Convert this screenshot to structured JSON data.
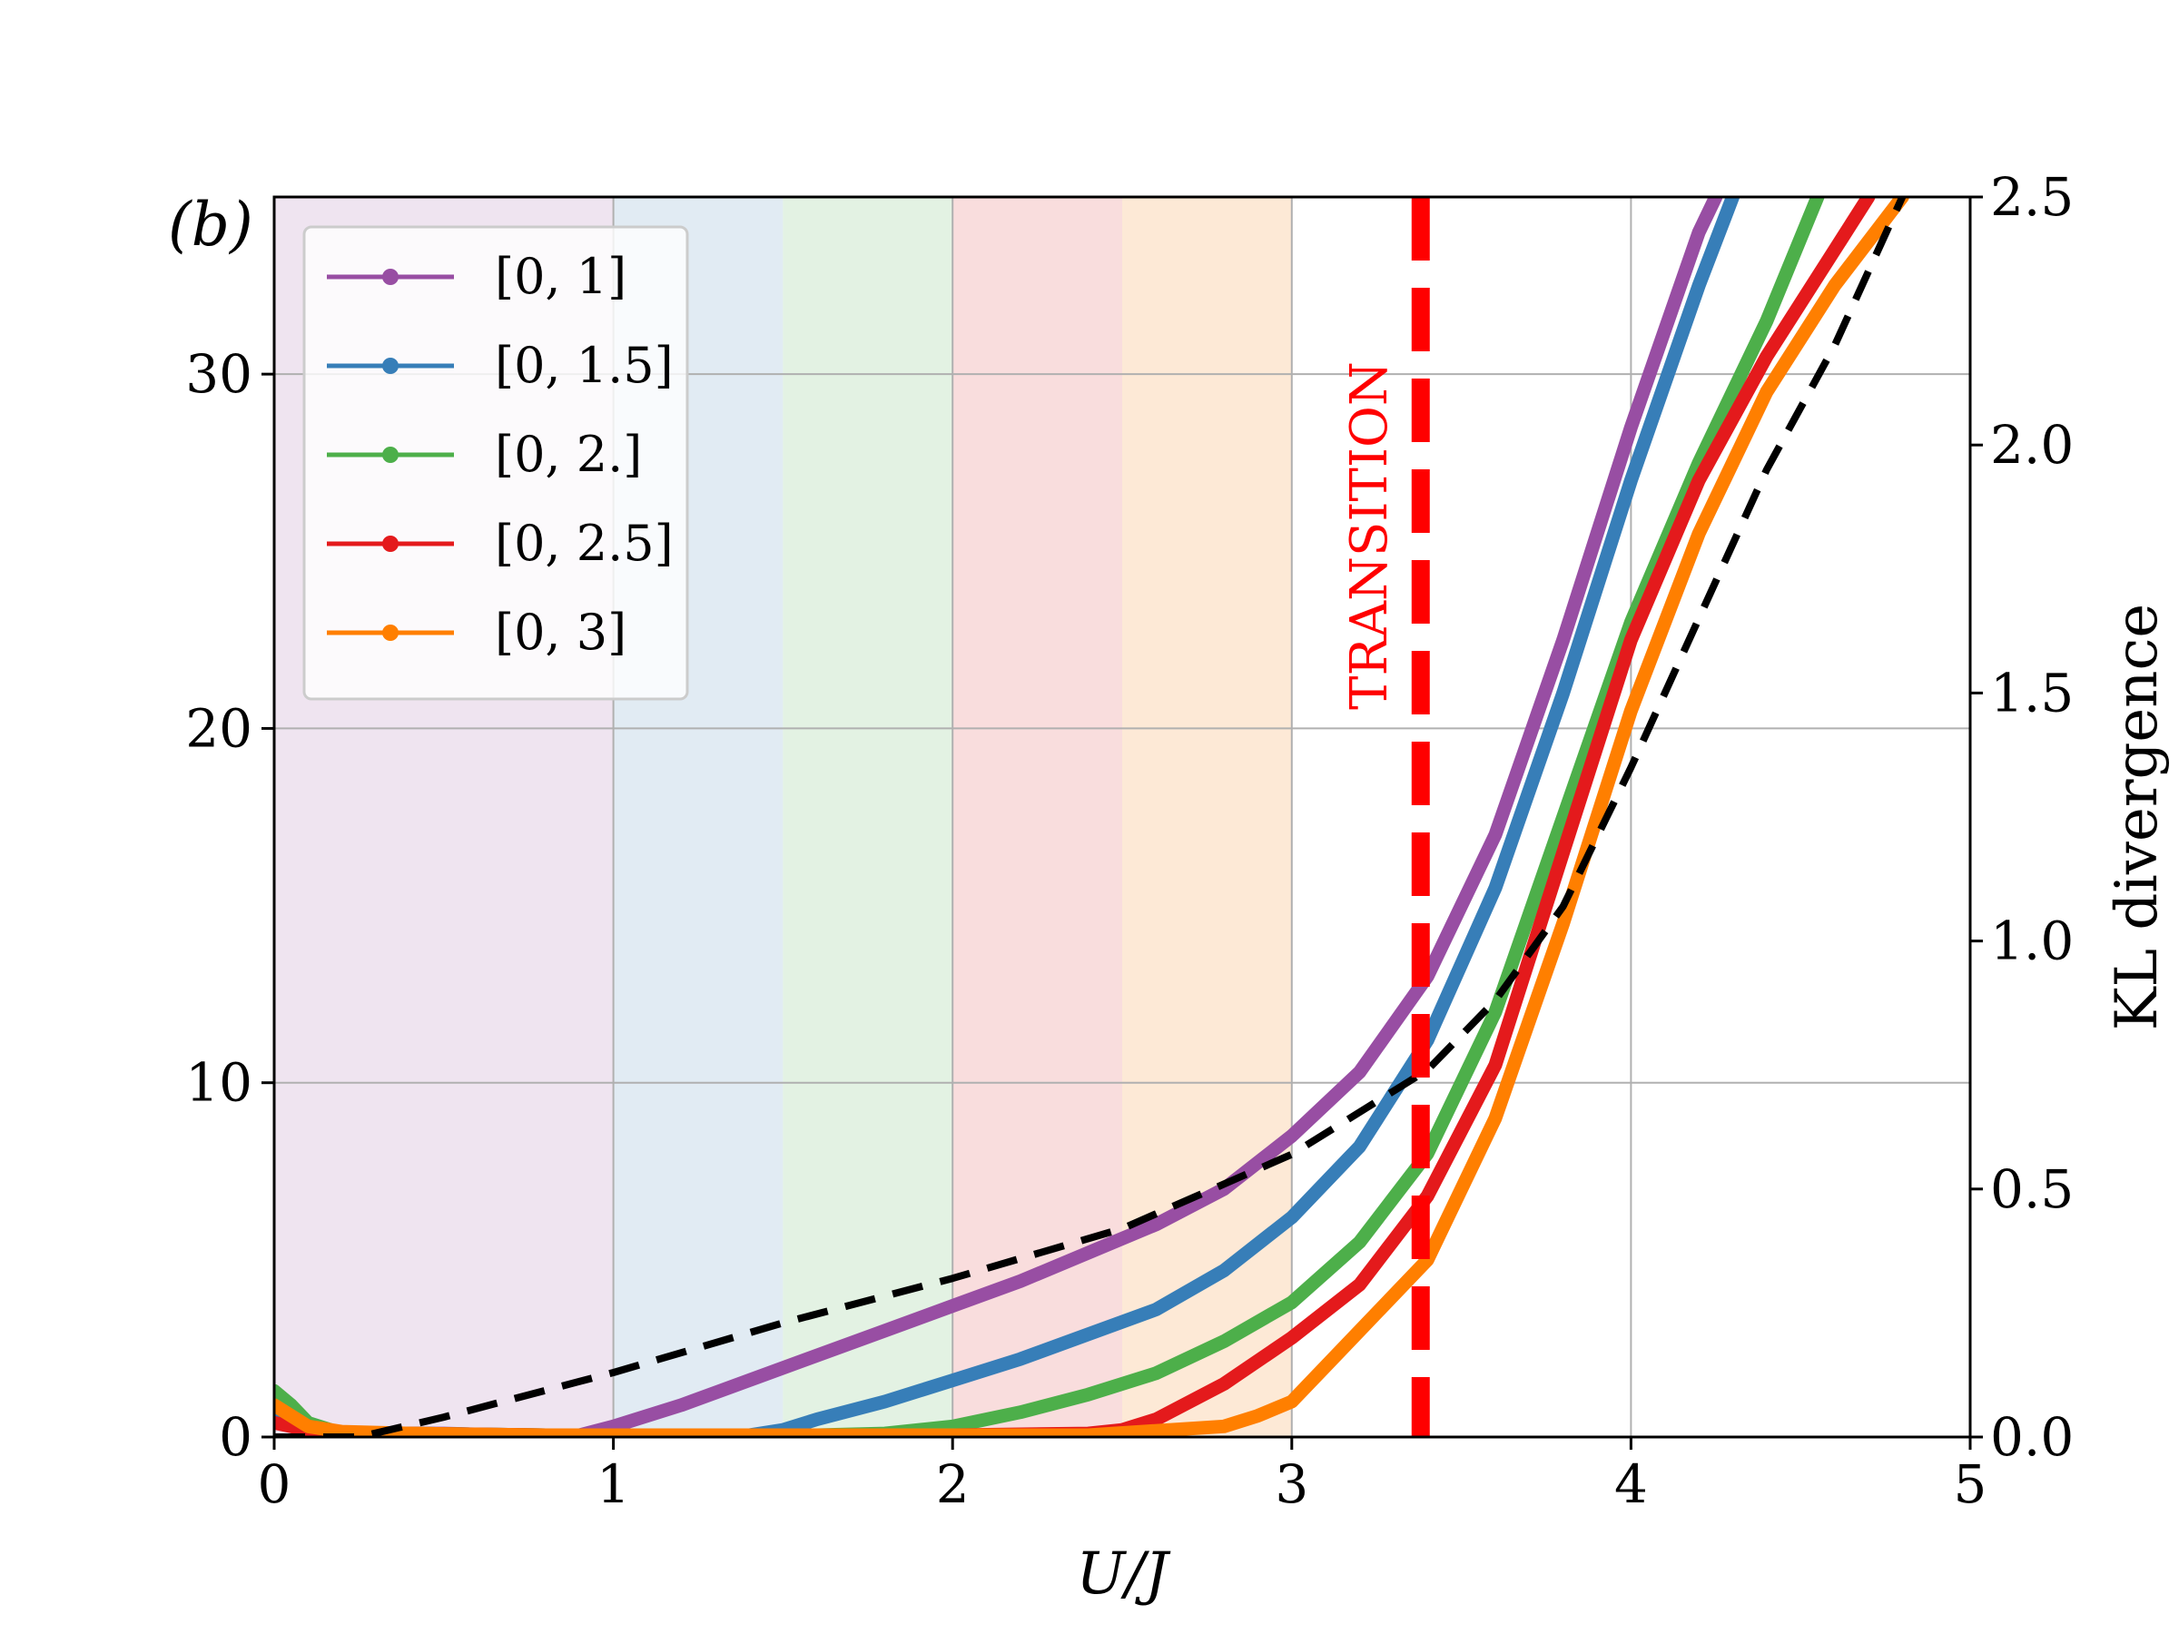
{
  "chart_data": {
    "type": "line",
    "panel_label": "(b)",
    "xlabel": "U/J",
    "ylabel": "",
    "ylabel_right": "KL divergence",
    "xlim": [
      0,
      5
    ],
    "ylim": [
      0,
      35
    ],
    "ylim_right": [
      0,
      2.5
    ],
    "xticks": [
      0,
      1,
      2,
      3,
      4,
      5
    ],
    "yticks": [
      0,
      10,
      20,
      30
    ],
    "yticks_right": [
      "0.0",
      "0.5",
      "1.0",
      "1.5",
      "2.0",
      "2.5"
    ],
    "grid": true,
    "legend_position": "top-left",
    "shaded_bands": [
      {
        "x": [
          0,
          1
        ],
        "color": "#efe4f0"
      },
      {
        "x": [
          1,
          1.5
        ],
        "color": "#e1ebf3"
      },
      {
        "x": [
          1.5,
          2
        ],
        "color": "#e3f2e3"
      },
      {
        "x": [
          2,
          2.5
        ],
        "color": "#f9dddd"
      },
      {
        "x": [
          2.5,
          3
        ],
        "color": "#fde9d6"
      }
    ],
    "transition": {
      "x": 3.38,
      "label": "TRANSITION",
      "color": "#ff0000"
    },
    "series": [
      {
        "name": "[0, 1]",
        "color": "#984ea3",
        "axis": "left",
        "x": [
          0,
          0.05,
          0.1,
          0.2,
          0.3,
          0.5,
          0.7,
          0.9,
          1.0,
          1.2,
          1.4,
          1.6,
          1.8,
          2.0,
          2.2,
          2.4,
          2.6,
          2.8,
          3.0,
          3.2,
          3.4,
          3.6,
          3.8,
          4.0,
          4.2,
          4.25
        ],
        "y": [
          0.7,
          0.4,
          0.2,
          0.1,
          0.1,
          0.1,
          0.05,
          0.05,
          0.3,
          0.9,
          1.6,
          2.3,
          3.0,
          3.7,
          4.4,
          5.2,
          6.0,
          7.0,
          8.5,
          10.3,
          13.0,
          17.0,
          22.5,
          28.5,
          34.0,
          35.0
        ]
      },
      {
        "name": "[0, 1.5]",
        "color": "#377eb8",
        "axis": "left",
        "x": [
          0,
          0.05,
          0.1,
          0.2,
          0.4,
          0.8,
          1.2,
          1.4,
          1.5,
          1.6,
          1.8,
          2.0,
          2.2,
          2.4,
          2.6,
          2.8,
          3.0,
          3.2,
          3.4,
          3.6,
          3.8,
          4.0,
          4.2,
          4.3
        ],
        "y": [
          0.6,
          0.4,
          0.2,
          0.1,
          0.1,
          0.05,
          0.05,
          0.05,
          0.2,
          0.5,
          1.0,
          1.6,
          2.2,
          2.9,
          3.6,
          4.7,
          6.2,
          8.2,
          11.2,
          15.5,
          21.0,
          27.0,
          32.5,
          35.0
        ]
      },
      {
        "name": "[0, 2.]",
        "color": "#4daf4a",
        "axis": "left",
        "x": [
          0,
          0.05,
          0.1,
          0.2,
          0.4,
          0.8,
          1.2,
          1.6,
          1.8,
          2.0,
          2.2,
          2.4,
          2.6,
          2.8,
          3.0,
          3.2,
          3.4,
          3.6,
          3.8,
          4.0,
          4.2,
          4.4,
          4.55
        ],
        "y": [
          1.3,
          0.9,
          0.4,
          0.1,
          0.1,
          0.05,
          0.05,
          0.05,
          0.1,
          0.3,
          0.7,
          1.2,
          1.8,
          2.7,
          3.8,
          5.5,
          8.0,
          12.0,
          17.5,
          23.0,
          27.5,
          31.5,
          35.0
        ]
      },
      {
        "name": "[0, 2.5]",
        "color": "#e41a1c",
        "axis": "left",
        "x": [
          0,
          0.05,
          0.1,
          0.2,
          0.4,
          0.8,
          1.2,
          1.6,
          2.0,
          2.4,
          2.5,
          2.6,
          2.8,
          3.0,
          3.2,
          3.4,
          3.6,
          3.8,
          4.0,
          4.2,
          4.4,
          4.6,
          4.7
        ],
        "y": [
          0.4,
          0.3,
          0.2,
          0.1,
          0.1,
          0.05,
          0.05,
          0.05,
          0.05,
          0.1,
          0.2,
          0.5,
          1.5,
          2.8,
          4.3,
          6.8,
          10.5,
          16.5,
          22.5,
          27.0,
          30.5,
          33.5,
          35.0
        ]
      },
      {
        "name": "[0, 3]",
        "color": "#ff7f00",
        "axis": "left",
        "x": [
          0,
          0.05,
          0.1,
          0.2,
          0.4,
          0.8,
          1.2,
          1.6,
          2.0,
          2.4,
          2.8,
          2.9,
          3.0,
          3.1,
          3.2,
          3.4,
          3.6,
          3.8,
          4.0,
          4.2,
          4.4,
          4.6,
          4.8
        ],
        "y": [
          0.9,
          0.6,
          0.3,
          0.15,
          0.1,
          0.05,
          0.05,
          0.05,
          0.05,
          0.05,
          0.3,
          0.6,
          1.0,
          2.0,
          3.0,
          5.0,
          9.0,
          14.5,
          20.5,
          25.5,
          29.5,
          32.5,
          35.0
        ]
      },
      {
        "name": "",
        "color": "#000000",
        "axis": "right",
        "dashed": true,
        "x": [
          0,
          0.25,
          0.5,
          1.0,
          1.5,
          2.0,
          2.5,
          3.0,
          3.4,
          3.6,
          3.8,
          4.0,
          4.2,
          4.4,
          4.6,
          4.8
        ],
        "y": [
          0.0,
          0.0,
          0.04,
          0.13,
          0.23,
          0.32,
          0.42,
          0.57,
          0.74,
          0.88,
          1.07,
          1.35,
          1.65,
          1.95,
          2.2,
          2.5
        ]
      }
    ]
  }
}
